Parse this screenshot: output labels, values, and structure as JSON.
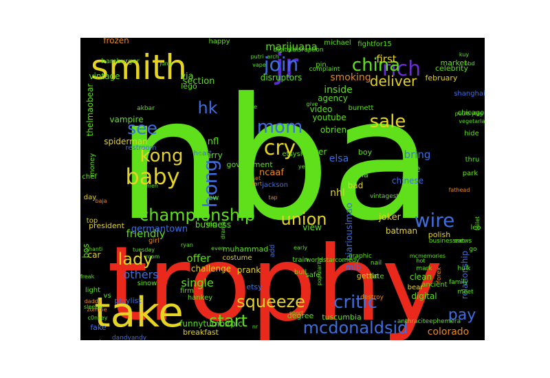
{
  "words": [
    {
      "text": "nba",
      "color": "#5fe01a"
    },
    {
      "text": "trophy",
      "color": "#e8291b"
    },
    {
      "text": "smith",
      "color": "#e6d422"
    },
    {
      "text": "take",
      "color": "#e6d422"
    },
    {
      "text": "jr",
      "color": "#5a2fd0"
    },
    {
      "text": "rich",
      "color": "#6a2fd0"
    },
    {
      "text": "china",
      "color": "#5fe01a"
    },
    {
      "text": "join",
      "color": "#3d6fe0"
    },
    {
      "text": "deliver",
      "color": "#e6d422"
    },
    {
      "text": "sale",
      "color": "#e6d422"
    },
    {
      "text": "mom",
      "color": "#3d6fe0"
    },
    {
      "text": "cry",
      "color": "#e6d422"
    },
    {
      "text": "hk",
      "color": "#3d6fe0"
    },
    {
      "text": "kong",
      "color": "#e6d422"
    },
    {
      "text": "see",
      "color": "#3d6fe0"
    },
    {
      "text": "baby",
      "color": "#e6d422"
    },
    {
      "text": "hong",
      "color": "#3d6fe0"
    },
    {
      "text": "championship",
      "color": "#5fe01a"
    },
    {
      "text": "union",
      "color": "#e6d422"
    },
    {
      "text": "wire",
      "color": "#3d6fe0"
    },
    {
      "text": "lady",
      "color": "#e6d422"
    },
    {
      "text": "squeeze",
      "color": "#e6d422"
    },
    {
      "text": "critic",
      "color": "#3d6fe0"
    },
    {
      "text": "pay",
      "color": "#3d6fe0"
    },
    {
      "text": "start",
      "color": "#5fe01a"
    },
    {
      "text": "mcdonaldsid",
      "color": "#3d6fe0"
    },
    {
      "text": "colorado",
      "color": "#e8891b"
    },
    {
      "text": "others",
      "color": "#3d6fe0"
    },
    {
      "text": "offer",
      "color": "#5fe01a"
    },
    {
      "text": "single",
      "color": "#5fe01a"
    },
    {
      "text": "friendly",
      "color": "#5fe01a"
    },
    {
      "text": "germantown",
      "color": "#3d6fe0"
    },
    {
      "text": "marijuana",
      "color": "#5fe01a"
    },
    {
      "text": "first",
      "color": "#e6d422"
    },
    {
      "text": "smoking",
      "color": "#e8891b"
    },
    {
      "text": "inside",
      "color": "#5fe01a"
    },
    {
      "text": "disruptors",
      "color": "#5fe01a"
    },
    {
      "text": "frozen",
      "color": "#e8891b"
    },
    {
      "text": "elsa",
      "color": "#3d6fe0"
    },
    {
      "text": "nhl",
      "color": "#e6d422"
    },
    {
      "text": "ncaaf",
      "color": "#e8891b"
    },
    {
      "text": "section",
      "color": "#5fe01a"
    },
    {
      "text": "vintage",
      "color": "#5fe01a"
    },
    {
      "text": "via",
      "color": "#5fe01a"
    },
    {
      "text": "nfl",
      "color": "#5fe01a"
    },
    {
      "text": "larry",
      "color": "#5fe01a"
    },
    {
      "text": "vampire",
      "color": "#5fe01a"
    },
    {
      "text": "spiderman",
      "color": "#e6d422"
    },
    {
      "text": "reuter",
      "color": "#5fe01a"
    },
    {
      "text": "youtube",
      "color": "#5fe01a"
    },
    {
      "text": "obrien",
      "color": "#5fe01a"
    },
    {
      "text": "video",
      "color": "#5fe01a"
    },
    {
      "text": "agency",
      "color": "#5fe01a"
    },
    {
      "text": "market",
      "color": "#5fe01a"
    },
    {
      "text": "february",
      "color": "#e6d422"
    },
    {
      "text": "celebrity",
      "color": "#5fe01a"
    },
    {
      "text": "bring",
      "color": "#3d6fe0"
    },
    {
      "text": "drive",
      "color": "#5fe01a"
    },
    {
      "text": "chinese",
      "color": "#3d6fe0"
    },
    {
      "text": "joker",
      "color": "#e6d422"
    },
    {
      "text": "batman",
      "color": "#e6d422"
    },
    {
      "text": "view",
      "color": "#5fe01a"
    },
    {
      "text": "bad",
      "color": "#e6d422"
    },
    {
      "text": "business",
      "color": "#5fe01a"
    },
    {
      "text": "challenge",
      "color": "#e6d422"
    },
    {
      "text": "prank",
      "color": "#e6d422"
    },
    {
      "text": "mlb",
      "color": "#3d6fe0"
    },
    {
      "text": "digital",
      "color": "#5fe01a"
    },
    {
      "text": "clean",
      "color": "#5fe01a"
    },
    {
      "text": "relationship",
      "color": "#3d6fe0"
    },
    {
      "text": "playlist",
      "color": "#3d6fe0"
    },
    {
      "text": "etsy",
      "color": "#3d6fe0"
    },
    {
      "text": "funnytumbirpic",
      "color": "#5fe01a"
    },
    {
      "text": "breakfast",
      "color": "#e6d422"
    },
    {
      "text": "fake",
      "color": "#3d6fe0"
    },
    {
      "text": "car",
      "color": "#e6d422"
    },
    {
      "text": "bos",
      "color": "#5fe01a"
    },
    {
      "text": "lego",
      "color": "#5fe01a"
    },
    {
      "text": "thelmaobear",
      "color": "#5fe01a"
    },
    {
      "text": "hiariouslmao",
      "color": "#3d6fe0"
    },
    {
      "text": "tuscumbia",
      "color": "#5fe01a"
    },
    {
      "text": "degree",
      "color": "#5fe01a"
    },
    {
      "text": "gettin",
      "color": "#e6d422"
    },
    {
      "text": "muhammad",
      "color": "#5fe01a"
    },
    {
      "text": "costume",
      "color": "#e6d422"
    },
    {
      "text": "polish",
      "color": "#e6d422"
    },
    {
      "text": "new",
      "color": "#5fe01a"
    },
    {
      "text": "ring",
      "color": "#5fe01a"
    },
    {
      "text": "president",
      "color": "#e6d422"
    },
    {
      "text": "jackson",
      "color": "#3d6fe0"
    },
    {
      "text": "boy",
      "color": "#5fe01a"
    },
    {
      "text": "anna",
      "color": "#5fe01a"
    },
    {
      "text": "government",
      "color": "#5fe01a"
    },
    {
      "text": "train",
      "color": "#5fe01a"
    },
    {
      "text": "bull",
      "color": "#5fe01a"
    },
    {
      "text": "safe",
      "color": "#5fe01a"
    },
    {
      "text": "late",
      "color": "#5fe01a"
    },
    {
      "text": "bear",
      "color": "#e6d422"
    },
    {
      "text": "ancient",
      "color": "#5fe01a"
    },
    {
      "text": "vs",
      "color": "#5fe01a"
    },
    {
      "text": "firm",
      "color": "#5fe01a"
    },
    {
      "text": "hankey",
      "color": "#5fe01a"
    },
    {
      "text": "sinow",
      "color": "#5fe01a"
    },
    {
      "text": "light",
      "color": "#5fe01a"
    },
    {
      "text": "girl",
      "color": "#e8891b"
    },
    {
      "text": "top",
      "color": "#e6d422"
    },
    {
      "text": "day",
      "color": "#e6d422"
    },
    {
      "text": "money",
      "color": "#5fe01a"
    },
    {
      "text": "chef",
      "color": "#5fe01a"
    },
    {
      "text": "hamburger",
      "color": "#5fe01a"
    },
    {
      "text": "happy",
      "color": "#5fe01a"
    },
    {
      "text": "michael",
      "color": "#5fe01a"
    },
    {
      "text": "fightfor15",
      "color": "#5fe01a"
    },
    {
      "text": "pin",
      "color": "#5fe01a"
    },
    {
      "text": "park",
      "color": "#5fe01a"
    },
    {
      "text": "thru",
      "color": "#5fe01a"
    },
    {
      "text": "hide",
      "color": "#5fe01a"
    },
    {
      "text": "chicago",
      "color": "#5fe01a"
    },
    {
      "text": "shanghai",
      "color": "#3d6fe0"
    },
    {
      "text": "etsyshop",
      "color": "#5fe01a"
    },
    {
      "text": "restroom",
      "color": "#3d6fe0"
    },
    {
      "text": "heart",
      "color": "#3d6fe0"
    },
    {
      "text": "coffee",
      "color": "#5fe01a"
    },
    {
      "text": "burnett",
      "color": "#5fe01a"
    },
    {
      "text": "leo",
      "color": "#5fe01a"
    },
    {
      "text": "go",
      "color": "#5fe01a"
    },
    {
      "text": "eat",
      "color": "#5fe01a"
    },
    {
      "text": "nail",
      "color": "#5fe01a"
    },
    {
      "text": "add",
      "color": "#3d6fe0"
    },
    {
      "text": "sport",
      "color": "#5fe01a"
    },
    {
      "text": "freak",
      "color": "#5fe01a"
    },
    {
      "text": "zombie",
      "color": "#e8891b"
    },
    {
      "text": "shanti",
      "color": "#5fe01a"
    },
    {
      "text": "akbar",
      "color": "#5fe01a"
    },
    {
      "text": "businessnews",
      "color": "#5fe01a"
    },
    {
      "text": "anthraciteephemera",
      "color": "#5fe01a"
    },
    {
      "text": "dandyandy",
      "color": "#3d6fe0"
    },
    {
      "text": "digitaldisruption",
      "color": "#5fe01a"
    },
    {
      "text": "worldstarcomedy",
      "color": "#5fe01a"
    },
    {
      "text": "vintagestore77",
      "color": "#5fe01a"
    },
    {
      "text": "complaint",
      "color": "#5fe01a"
    },
    {
      "text": "graphic",
      "color": "#5fe01a"
    },
    {
      "text": "destroy",
      "color": "#e8891b"
    },
    {
      "text": "mark",
      "color": "#5fe01a"
    },
    {
      "text": "forex",
      "color": "#e8891b"
    },
    {
      "text": "family",
      "color": "#5fe01a"
    },
    {
      "text": "meet",
      "color": "#5fe01a"
    },
    {
      "text": "andre",
      "color": "#5fe01a"
    },
    {
      "text": "c0nvey",
      "color": "#5fe01a"
    },
    {
      "text": "fathead",
      "color": "#e8891b"
    },
    {
      "text": "toilet",
      "color": "#5fe01a"
    },
    {
      "text": "hulk",
      "color": "#5fe01a"
    },
    {
      "text": "kuy",
      "color": "#5fe01a"
    },
    {
      "text": "hbd",
      "color": "#5fe01a"
    },
    {
      "text": "vegetarian",
      "color": "#5fe01a"
    },
    {
      "text": "poultryleg",
      "color": "#5fe01a"
    },
    {
      "text": "ceramic",
      "color": "#5fe01a"
    },
    {
      "text": "yessss",
      "color": "#5fe01a"
    },
    {
      "text": "damien",
      "color": "#5fe01a"
    },
    {
      "text": "tuesday",
      "color": "#5fe01a"
    },
    {
      "text": "room",
      "color": "#5fe01a"
    },
    {
      "text": "ryan",
      "color": "#5fe01a"
    },
    {
      "text": "even",
      "color": "#5fe01a"
    },
    {
      "text": "dude",
      "color": "#5fe01a"
    },
    {
      "text": "give",
      "color": "#5fe01a"
    },
    {
      "text": "arch",
      "color": "#5fe01a"
    },
    {
      "text": "vape",
      "color": "#5fe01a"
    },
    {
      "text": "putri",
      "color": "#5fe01a"
    },
    {
      "text": "june",
      "color": "#5fe01a"
    },
    {
      "text": "hot",
      "color": "#5fe01a"
    },
    {
      "text": "drama",
      "color": "#5fe01a"
    },
    {
      "text": "popularity",
      "color": "#5fe01a"
    },
    {
      "text": "early",
      "color": "#5fe01a"
    },
    {
      "text": "mcmemories",
      "color": "#5fe01a"
    },
    {
      "text": "baja",
      "color": "#e8891b"
    },
    {
      "text": "set",
      "color": "#e8891b"
    },
    {
      "text": "fart",
      "color": "#e8891b"
    },
    {
      "text": "tap",
      "color": "#e8891b"
    },
    {
      "text": "nr",
      "color": "#5fe01a"
    },
    {
      "text": "daddy",
      "color": "#e8891b"
    },
    {
      "text": "sleepy",
      "color": "#5fe01a"
    }
  ]
}
